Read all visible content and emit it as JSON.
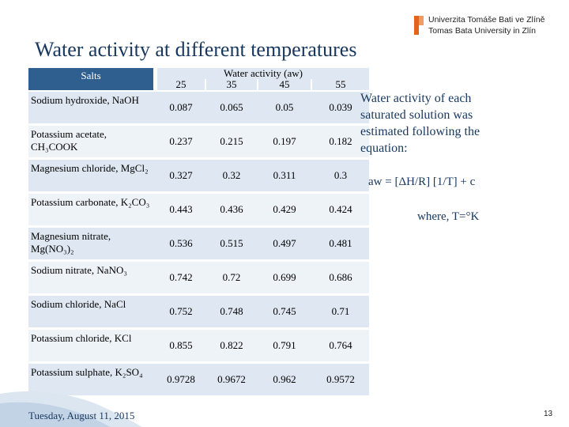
{
  "logo": {
    "line1": "Univerzita Tomáše Bati ve Zlíně",
    "line2": "Tomas Bata University in Zlín"
  },
  "title": "Water activity at different temperatures",
  "table": {
    "col_salts": "Salts",
    "col_wa": "Water activity (aw)",
    "temps": [
      "25",
      "35",
      "45",
      "55"
    ],
    "rows": [
      {
        "salt": "Sodium hydroxide, NaOH",
        "values": [
          "0.087",
          "0.065",
          "0.05",
          "0.039"
        ]
      },
      {
        "salt": "Potassium acetate, CH₃COOK",
        "values": [
          "0.237",
          "0.215",
          "0.197",
          "0.182"
        ]
      },
      {
        "salt": "Magnesium chloride, MgCl₂",
        "values": [
          "0.327",
          "0.32",
          "0.311",
          "0.3"
        ]
      },
      {
        "salt": "Potassium carbonate, K₂CO₃",
        "values": [
          "0.443",
          "0.436",
          "0.429",
          "0.424"
        ]
      },
      {
        "salt": "Magnesium nitrate, Mg(NO₃)₂",
        "values": [
          "0.536",
          "0.515",
          "0.497",
          "0.481"
        ]
      },
      {
        "salt": "Sodium nitrate, NaNO₃",
        "values": [
          "0.742",
          "0.72",
          "0.699",
          "0.686"
        ]
      },
      {
        "salt": "Sodium chloride, NaCl",
        "values": [
          "0.752",
          "0.748",
          "0.745",
          "0.71"
        ]
      },
      {
        "salt": "Potassium chloride, KCl",
        "values": [
          "0.855",
          "0.822",
          "0.791",
          "0.764"
        ]
      },
      {
        "salt": "Potassium sulphate, K₂SO₄",
        "values": [
          "0.9728",
          "0.9672",
          "0.962",
          "0.9572"
        ]
      }
    ]
  },
  "equation": {
    "text": "Water activity of each saturated solution was estimated following the equation:",
    "formula": "aw = [ΔH/R] [1/T] + c",
    "where": "where, T=°K"
  },
  "footer": {
    "date": "Tuesday, August 11, 2015",
    "page": "13"
  },
  "colors": {
    "title": "#17375e",
    "header": "#2f5f8f",
    "row_band": "#dfe8f2",
    "row_alt": "#eef3f8"
  }
}
